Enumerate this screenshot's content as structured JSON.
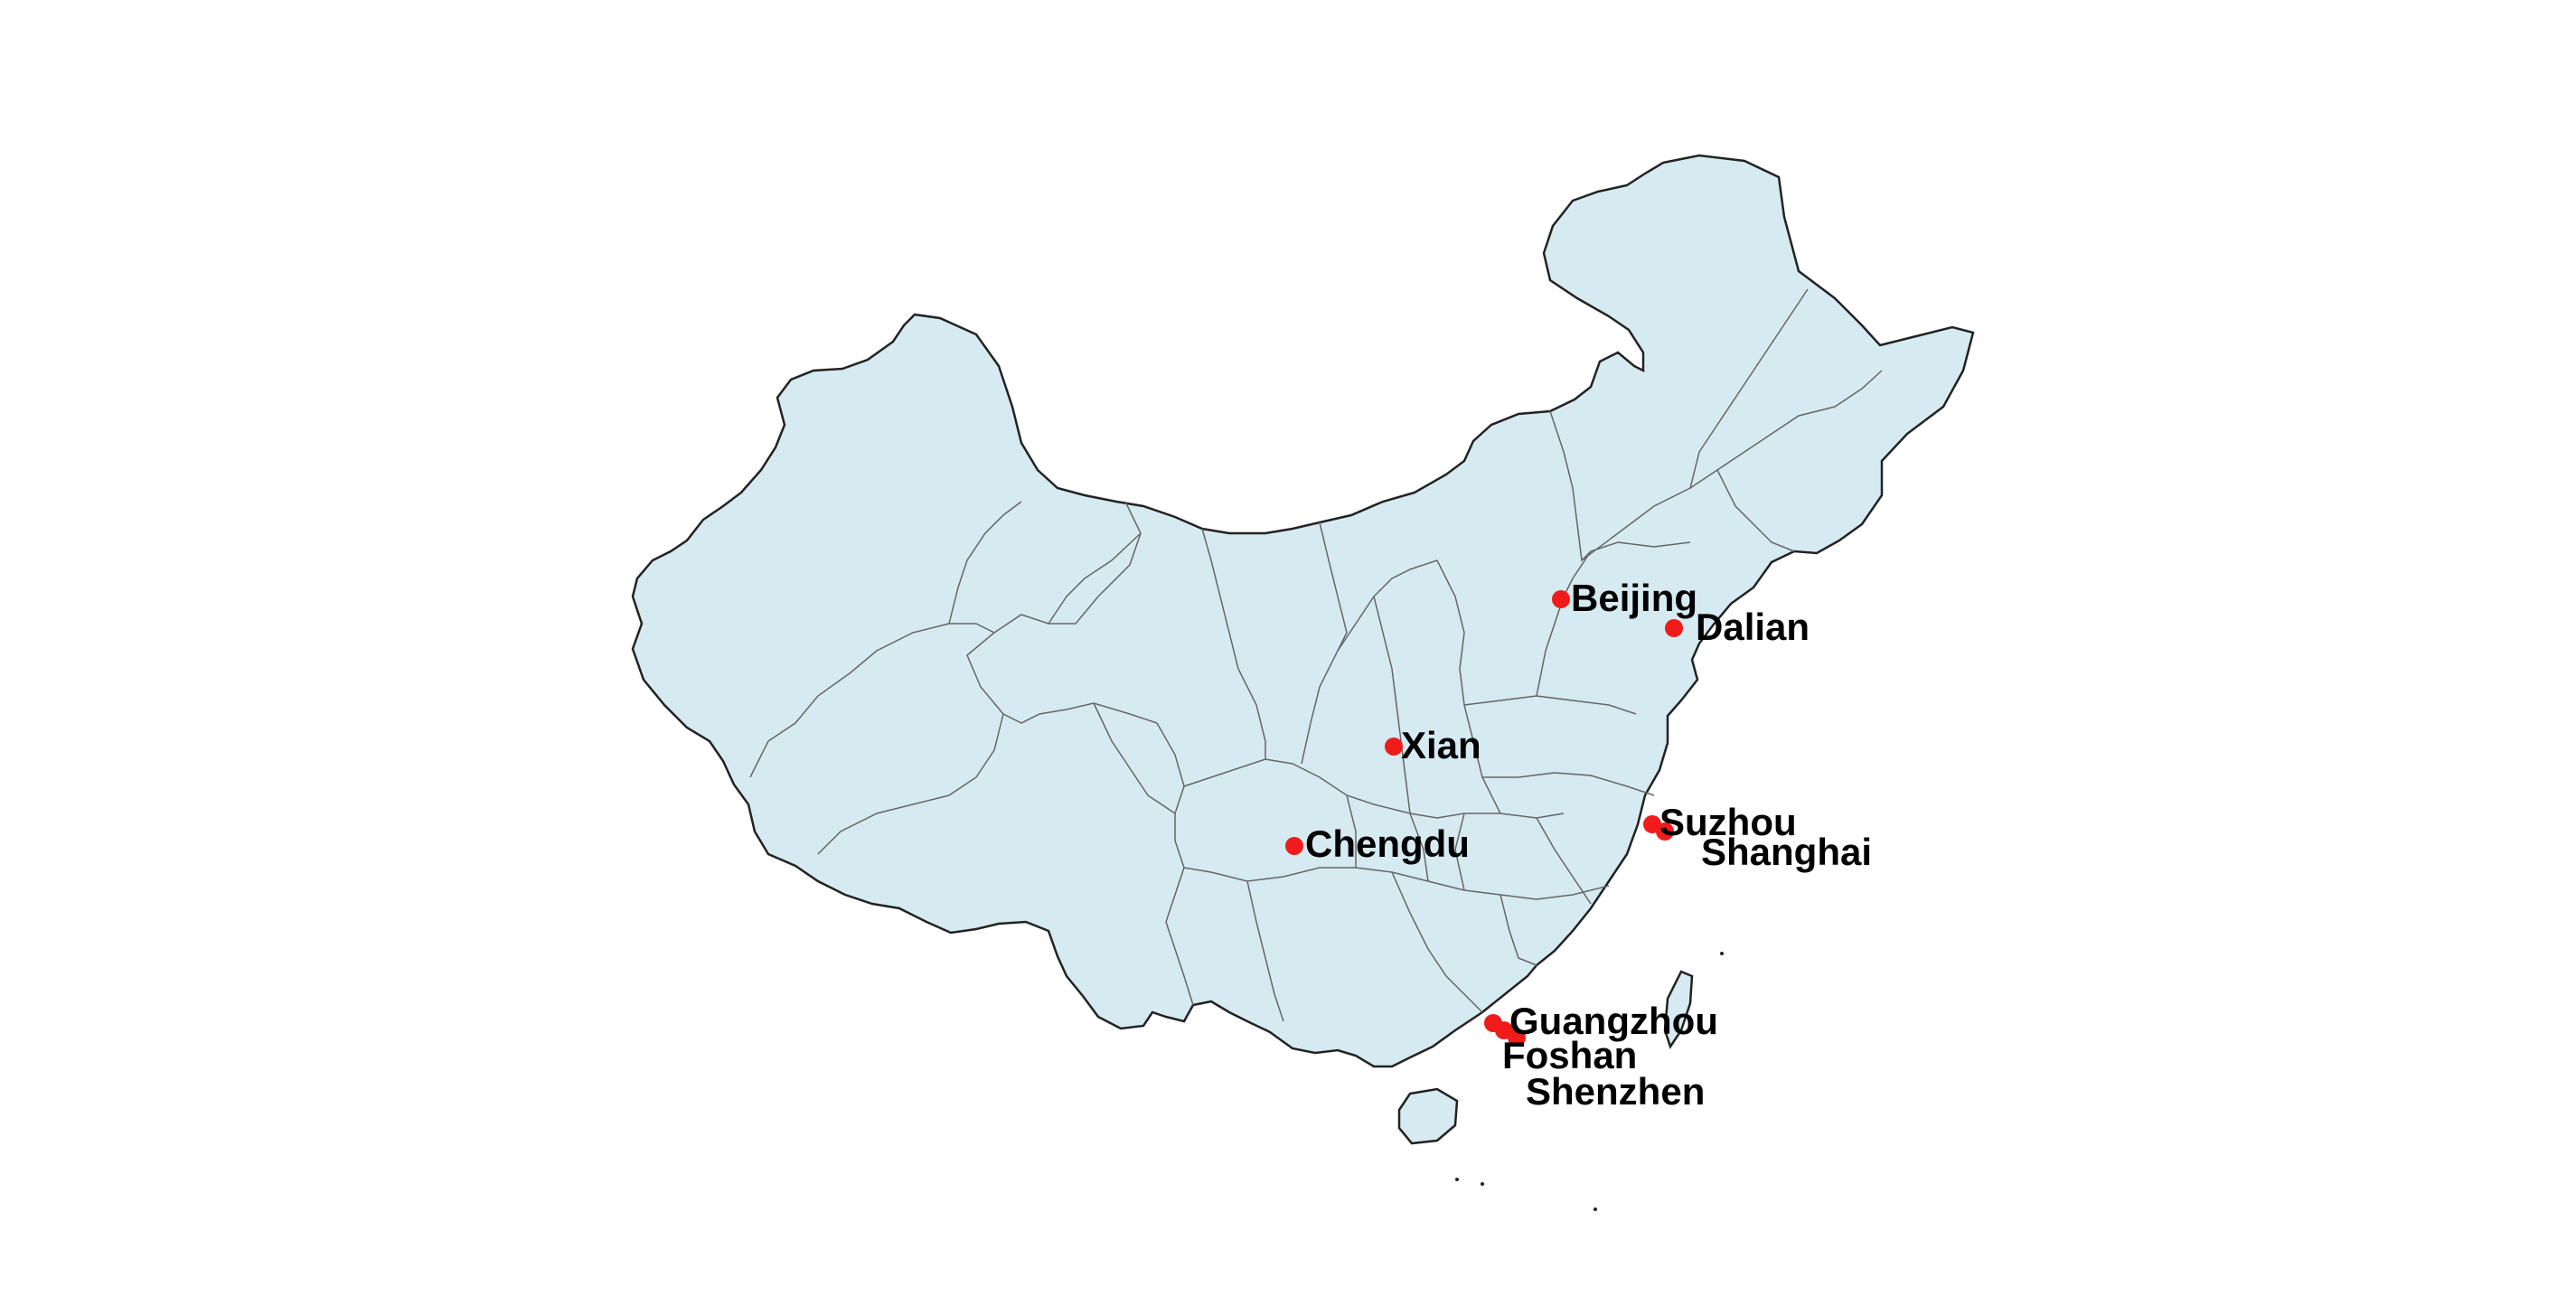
{
  "map": {
    "land_color": "#d6eaf1",
    "border_color": "#333333",
    "marker_color": "#f01c1c"
  },
  "cities": [
    {
      "name": "Beijing"
    },
    {
      "name": "Dalian"
    },
    {
      "name": "Xian"
    },
    {
      "name": "Suzhou"
    },
    {
      "name": "Shanghai"
    },
    {
      "name": "Chengdu"
    },
    {
      "name": "Guangzhou"
    },
    {
      "name": "Foshan"
    },
    {
      "name": "Shenzhen"
    }
  ]
}
